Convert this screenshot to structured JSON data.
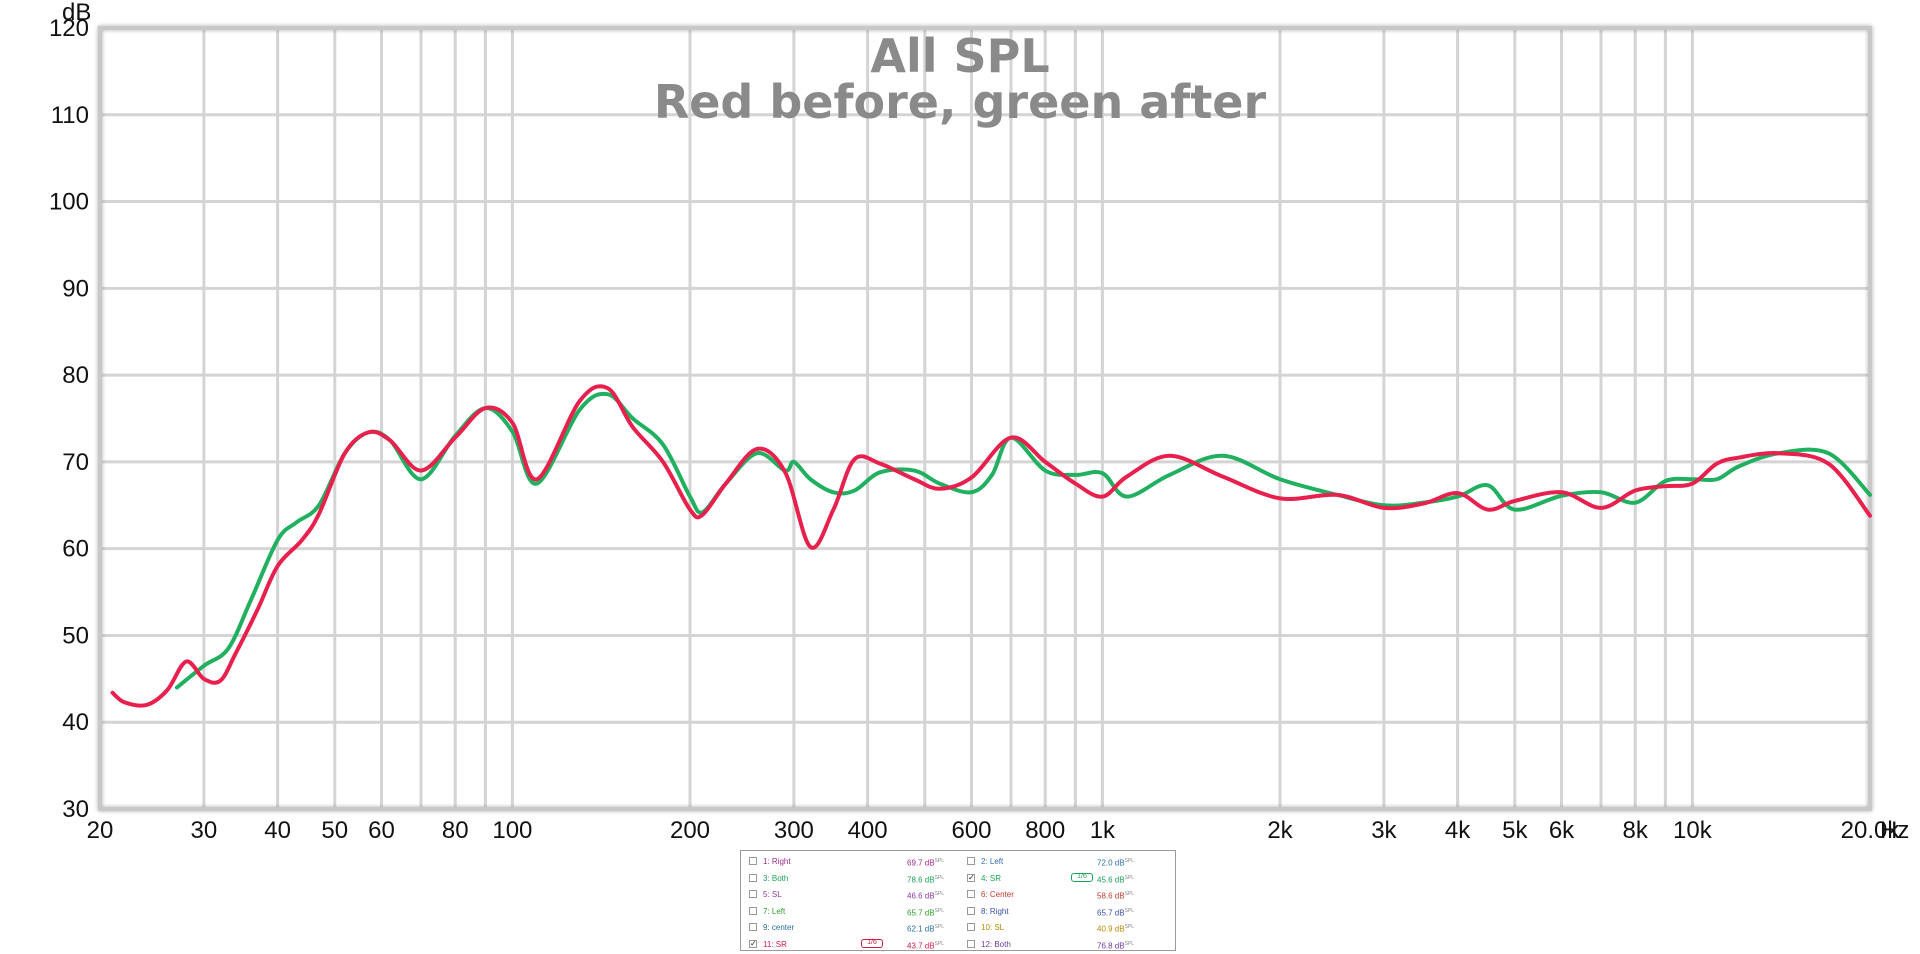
{
  "chart_data": {
    "type": "line",
    "title": "All SPL",
    "subtitle": "Red before, green after",
    "ylabel": "dB",
    "xunit": "Hz",
    "xscale": "log",
    "xlim": [
      20,
      20000
    ],
    "ylim": [
      30,
      120
    ],
    "grid": true,
    "yticks": [
      "30",
      "40",
      "50",
      "60",
      "70",
      "80",
      "90",
      "100",
      "110",
      "120"
    ],
    "xticks": [
      {
        "value": 20,
        "label": "20"
      },
      {
        "value": 30,
        "label": "30"
      },
      {
        "value": 40,
        "label": "40"
      },
      {
        "value": 50,
        "label": "50"
      },
      {
        "value": 60,
        "label": "60"
      },
      {
        "value": 80,
        "label": "80"
      },
      {
        "value": 100,
        "label": "100"
      },
      {
        "value": 200,
        "label": "200"
      },
      {
        "value": 300,
        "label": "300"
      },
      {
        "value": 400,
        "label": "400"
      },
      {
        "value": 600,
        "label": "600"
      },
      {
        "value": 800,
        "label": "800"
      },
      {
        "value": 1000,
        "label": "1k"
      },
      {
        "value": 2000,
        "label": "2k"
      },
      {
        "value": 3000,
        "label": "3k"
      },
      {
        "value": 4000,
        "label": "4k"
      },
      {
        "value": 5000,
        "label": "5k"
      },
      {
        "value": 6000,
        "label": "6k"
      },
      {
        "value": 8000,
        "label": "8k"
      },
      {
        "value": 10000,
        "label": "10k"
      },
      {
        "value": 20000,
        "label": "20.0k"
      }
    ],
    "minor_gridlines": [
      20,
      30,
      40,
      50,
      60,
      70,
      80,
      90,
      100,
      200,
      300,
      400,
      500,
      600,
      700,
      800,
      900,
      1000,
      2000,
      3000,
      4000,
      5000,
      6000,
      7000,
      8000,
      9000,
      10000,
      20000
    ],
    "series": [
      {
        "color": "#21b060",
        "x": [
          27,
          30,
          33,
          36,
          40,
          43,
          47,
          52,
          57,
          62,
          70,
          80,
          90,
          100,
          110,
          130,
          145,
          160,
          180,
          200,
          210,
          230,
          260,
          290,
          300,
          320,
          350,
          380,
          420,
          480,
          530,
          600,
          650,
          700,
          800,
          900,
          1000,
          1100,
          1300,
          1600,
          2000,
          2500,
          3000,
          3500,
          4000,
          4500,
          5000,
          6000,
          7000,
          8000,
          9000,
          10000,
          11000,
          12000,
          14000,
          17000,
          20000
        ],
        "y": [
          44,
          46.5,
          48.5,
          54,
          61,
          63,
          65,
          71,
          73.4,
          72.5,
          68,
          73,
          76.2,
          73.5,
          67.5,
          76,
          77.8,
          75,
          72,
          66,
          64.2,
          67.5,
          71,
          69,
          70,
          68,
          66.5,
          66.7,
          68.8,
          69,
          67.5,
          66.5,
          68.5,
          72.8,
          69,
          68.5,
          68.7,
          66,
          68.5,
          70.7,
          68,
          66.2,
          65,
          65.3,
          66,
          67.3,
          64.5,
          66.1,
          66.5,
          65.3,
          67.8,
          68,
          68,
          69.5,
          71,
          71,
          66.2
        ]
      },
      {
        "color": "#e8204e",
        "x": [
          21,
          22,
          24,
          26,
          28,
          30,
          32,
          34,
          37,
          40,
          44,
          47,
          52,
          57,
          62,
          70,
          80,
          90,
          100,
          110,
          130,
          145,
          160,
          180,
          200,
          210,
          230,
          260,
          290,
          320,
          350,
          380,
          420,
          480,
          530,
          600,
          700,
          800,
          900,
          1000,
          1100,
          1300,
          1600,
          2000,
          2500,
          3000,
          3500,
          4000,
          4500,
          5000,
          6000,
          7000,
          8000,
          9000,
          10000,
          11000,
          12000,
          14000,
          17000,
          20000
        ],
        "y": [
          43.4,
          42.3,
          42,
          43.7,
          47,
          45,
          44.8,
          48,
          53,
          58,
          61,
          64,
          71,
          73.4,
          72.5,
          69,
          72.8,
          76.2,
          74.5,
          68,
          77,
          78.5,
          74,
          70,
          64.5,
          63.9,
          67.5,
          71.5,
          68.8,
          60.2,
          64.5,
          70.3,
          69.8,
          68,
          66.9,
          68.2,
          72.8,
          70,
          67.5,
          66,
          68.3,
          70.7,
          68.3,
          65.8,
          66.2,
          64.7,
          65.2,
          66.4,
          64.5,
          65.5,
          66.5,
          64.7,
          66.7,
          67.2,
          67.5,
          69.8,
          70.5,
          71,
          69.8,
          63.8
        ]
      }
    ]
  },
  "legend": {
    "items": [
      {
        "label": "1: Right",
        "value": "69.7 dB",
        "unit": "SPL",
        "checked": false,
        "color": "#9b2a8a"
      },
      {
        "label": "2: Left",
        "value": "72.0 dB",
        "unit": "SPL",
        "checked": false,
        "color": "#2e6fae"
      },
      {
        "label": "3: Both",
        "value": "78.6 dB",
        "unit": "SPL",
        "checked": false,
        "color": "#1aa35a"
      },
      {
        "label": "4: SR",
        "value": "45.6 dB",
        "unit": "SPL",
        "checked": true,
        "color": "#1aa35a",
        "smoothing": "1/6"
      },
      {
        "label": "5: SL",
        "value": "46.6 dB",
        "unit": "SPL",
        "checked": false,
        "color": "#8a3aa8"
      },
      {
        "label": "6: Center",
        "value": "58.6 dB",
        "unit": "SPL",
        "checked": false,
        "color": "#c0392b"
      },
      {
        "label": "7: Left",
        "value": "65.7 dB",
        "unit": "SPL",
        "checked": false,
        "color": "#2e9e2e"
      },
      {
        "label": "8: Right",
        "value": "65.7 dB",
        "unit": "SPL",
        "checked": false,
        "color": "#3a4fae"
      },
      {
        "label": "9: center",
        "value": "62.1 dB",
        "unit": "SPL",
        "checked": false,
        "color": "#2a6e9e"
      },
      {
        "label": "10: SL",
        "value": "40.9 dB",
        "unit": "SPL",
        "checked": false,
        "color": "#b88a00"
      },
      {
        "label": "11: SR",
        "value": "43.7 dB",
        "unit": "SPL",
        "checked": true,
        "color": "#d11a46",
        "smoothing": "1/6"
      },
      {
        "label": "12: Both",
        "value": "76.8 dB",
        "unit": "SPL",
        "checked": false,
        "color": "#6a3aa8"
      }
    ]
  }
}
